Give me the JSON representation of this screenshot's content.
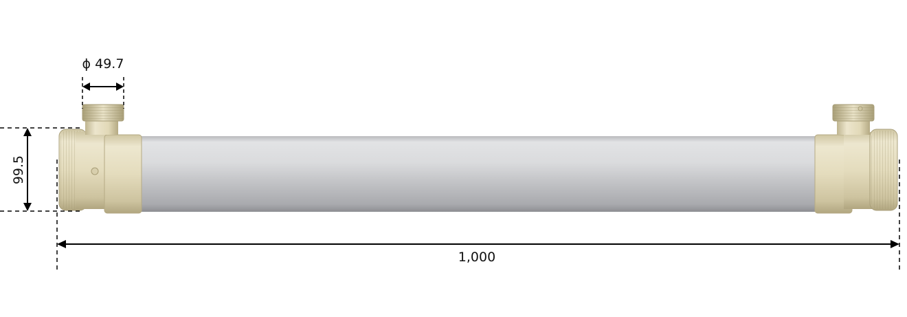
{
  "dimensions": {
    "port_diameter": "ϕ 49.7",
    "body_height": "99.5",
    "overall_length": "1,000"
  },
  "colors": {
    "housing": "#c7c8ca",
    "fitting": "#e7e0c4",
    "fitting_shadow": "#bdb391",
    "dimension_line": "#000000"
  }
}
